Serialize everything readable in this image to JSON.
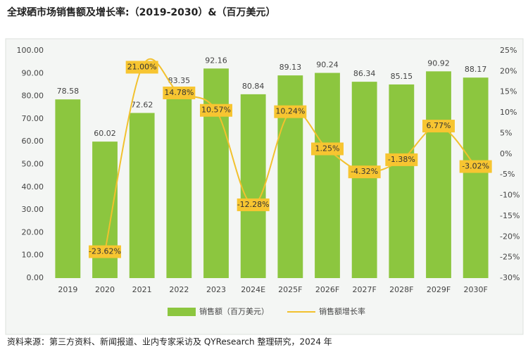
{
  "chart_data": {
    "type": "bar-line",
    "title": "全球硒市场销售额及增长率:（2019-2030）&（百万美元）",
    "categories": [
      "2019",
      "2020",
      "2021",
      "2022",
      "2023",
      "2024E",
      "2025F",
      "2026F",
      "2027F",
      "2028F",
      "2029F",
      "2030F"
    ],
    "series": [
      {
        "name": "销售额（百万美元）",
        "color": "#8cc63f",
        "type": "bar",
        "values": [
          78.58,
          60.02,
          72.62,
          83.35,
          92.16,
          80.84,
          89.13,
          90.24,
          86.34,
          85.15,
          90.92,
          88.17
        ]
      },
      {
        "name": "销售额增长率",
        "color": "#f2c12e",
        "type": "line",
        "axis": "y2",
        "values": [
          null,
          -23.62,
          21.0,
          14.78,
          10.57,
          -12.28,
          10.24,
          1.25,
          -4.32,
          -1.38,
          6.77,
          -3.02
        ],
        "value_labels": [
          null,
          "-23.62%",
          "21.00%",
          "14.78%",
          "10.57%",
          "-12.28%",
          "10.24%",
          "1.25%",
          "-4.32%",
          "-1.38%",
          "6.77%",
          "-3.02%"
        ]
      }
    ],
    "ylim": [
      0,
      100
    ],
    "yticks": [
      {
        "value": 0,
        "label": "0.00"
      },
      {
        "value": 10,
        "label": "10.00"
      },
      {
        "value": 20,
        "label": "20.00"
      },
      {
        "value": 30,
        "label": "30.00"
      },
      {
        "value": 40,
        "label": "40.00"
      },
      {
        "value": 50,
        "label": "50.00"
      },
      {
        "value": 60,
        "label": "60.00"
      },
      {
        "value": 70,
        "label": "70.00"
      },
      {
        "value": 80,
        "label": "80.00"
      },
      {
        "value": 90,
        "label": "90.00"
      },
      {
        "value": 100,
        "label": "100.00"
      }
    ],
    "y2lim": [
      -30,
      25
    ],
    "y2ticks": [
      {
        "value": -30,
        "label": "-30%"
      },
      {
        "value": -25,
        "label": "-25%"
      },
      {
        "value": -20,
        "label": "-20%"
      },
      {
        "value": -15,
        "label": "-15%"
      },
      {
        "value": -10,
        "label": "-10%"
      },
      {
        "value": -5,
        "label": "-5%"
      },
      {
        "value": 0,
        "label": "0%"
      },
      {
        "value": 5,
        "label": "5%"
      },
      {
        "value": 10,
        "label": "10%"
      },
      {
        "value": 15,
        "label": "15%"
      },
      {
        "value": 20,
        "label": "20%"
      },
      {
        "value": 25,
        "label": "25%"
      }
    ],
    "source": "资料来源：第三方资料、新闻报道、业内专家采访及 QYResearch 整理研究，2024 年"
  }
}
